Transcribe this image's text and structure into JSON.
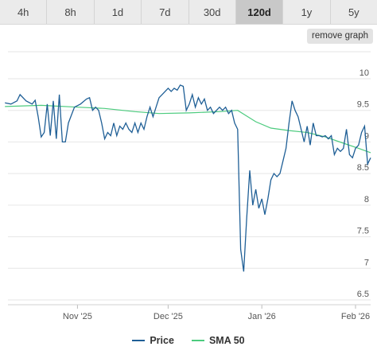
{
  "tabs": [
    {
      "label": "4h",
      "active": false
    },
    {
      "label": "8h",
      "active": false
    },
    {
      "label": "1d",
      "active": false
    },
    {
      "label": "7d",
      "active": false
    },
    {
      "label": "30d",
      "active": false
    },
    {
      "label": "120d",
      "active": true
    },
    {
      "label": "1y",
      "active": false
    },
    {
      "label": "5y",
      "active": false
    }
  ],
  "remove_graph_label": "remove graph",
  "colors": {
    "price": "#1f5f96",
    "sma": "#4ccb7e",
    "grid": "#e6e6e6",
    "axis_text": "#555555"
  },
  "chart_data": {
    "type": "line",
    "title": "",
    "xlabel": "",
    "ylabel": "",
    "ylim": [
      6.5,
      10
    ],
    "yticks": [
      6.5,
      7,
      7.5,
      8,
      8.5,
      9,
      9.5,
      10
    ],
    "ytick_labels": [
      "6.5",
      "7",
      "7.5",
      "8",
      "8.5",
      "9",
      "9.5",
      "10"
    ],
    "xlim": [
      "2025-10-09",
      "2026-02-06"
    ],
    "xticks": [
      {
        "date": "2025-11-01",
        "label": "Nov '25"
      },
      {
        "date": "2025-12-01",
        "label": "Dec '25"
      },
      {
        "date": "2026-01-01",
        "label": "Jan '26"
      },
      {
        "date": "2026-02-01",
        "label": "Feb '26"
      }
    ],
    "grid": "horizontal",
    "legend_position": "bottom",
    "series": [
      {
        "name": "Price",
        "points": [
          [
            "2025-10-08",
            9.62
          ],
          [
            "2025-10-10",
            9.6
          ],
          [
            "2025-10-12",
            9.65
          ],
          [
            "2025-10-13",
            9.75
          ],
          [
            "2025-10-15",
            9.65
          ],
          [
            "2025-10-17",
            9.6
          ],
          [
            "2025-10-18",
            9.66
          ],
          [
            "2025-10-19",
            9.4
          ],
          [
            "2025-10-20",
            9.08
          ],
          [
            "2025-10-21",
            9.15
          ],
          [
            "2025-10-22",
            9.6
          ],
          [
            "2025-10-23",
            9.1
          ],
          [
            "2025-10-24",
            9.65
          ],
          [
            "2025-10-25",
            9.05
          ],
          [
            "2025-10-26",
            9.75
          ],
          [
            "2025-10-27",
            9.0
          ],
          [
            "2025-10-28",
            9.0
          ],
          [
            "2025-10-29",
            9.3
          ],
          [
            "2025-10-31",
            9.55
          ],
          [
            "2025-11-02",
            9.6
          ],
          [
            "2025-11-04",
            9.68
          ],
          [
            "2025-11-05",
            9.7
          ],
          [
            "2025-11-06",
            9.5
          ],
          [
            "2025-11-07",
            9.55
          ],
          [
            "2025-11-08",
            9.5
          ],
          [
            "2025-11-09",
            9.3
          ],
          [
            "2025-11-10",
            9.05
          ],
          [
            "2025-11-11",
            9.15
          ],
          [
            "2025-11-12",
            9.1
          ],
          [
            "2025-11-13",
            9.3
          ],
          [
            "2025-11-14",
            9.1
          ],
          [
            "2025-11-15",
            9.25
          ],
          [
            "2025-11-16",
            9.2
          ],
          [
            "2025-11-17",
            9.3
          ],
          [
            "2025-11-18",
            9.2
          ],
          [
            "2025-11-19",
            9.15
          ],
          [
            "2025-11-20",
            9.3
          ],
          [
            "2025-11-21",
            9.15
          ],
          [
            "2025-11-22",
            9.3
          ],
          [
            "2025-11-23",
            9.2
          ],
          [
            "2025-11-24",
            9.4
          ],
          [
            "2025-11-25",
            9.55
          ],
          [
            "2025-11-26",
            9.4
          ],
          [
            "2025-11-27",
            9.55
          ],
          [
            "2025-11-28",
            9.7
          ],
          [
            "2025-11-29",
            9.75
          ],
          [
            "2025-11-30",
            9.8
          ],
          [
            "2025-12-01",
            9.85
          ],
          [
            "2025-12-02",
            9.8
          ],
          [
            "2025-12-03",
            9.85
          ],
          [
            "2025-12-04",
            9.82
          ],
          [
            "2025-12-05",
            9.9
          ],
          [
            "2025-12-06",
            9.88
          ],
          [
            "2025-12-07",
            9.5
          ],
          [
            "2025-12-08",
            9.6
          ],
          [
            "2025-12-09",
            9.75
          ],
          [
            "2025-12-10",
            9.55
          ],
          [
            "2025-12-11",
            9.7
          ],
          [
            "2025-12-12",
            9.6
          ],
          [
            "2025-12-13",
            9.68
          ],
          [
            "2025-12-14",
            9.5
          ],
          [
            "2025-12-15",
            9.55
          ],
          [
            "2025-12-16",
            9.45
          ],
          [
            "2025-12-17",
            9.5
          ],
          [
            "2025-12-18",
            9.55
          ],
          [
            "2025-12-19",
            9.5
          ],
          [
            "2025-12-20",
            9.55
          ],
          [
            "2025-12-21",
            9.45
          ],
          [
            "2025-12-22",
            9.5
          ],
          [
            "2025-12-23",
            9.3
          ],
          [
            "2025-12-24",
            9.2
          ],
          [
            "2025-12-25",
            7.3
          ],
          [
            "2025-12-26",
            6.95
          ],
          [
            "2025-12-27",
            7.8
          ],
          [
            "2025-12-28",
            8.55
          ],
          [
            "2025-12-29",
            8.0
          ],
          [
            "2025-12-30",
            8.25
          ],
          [
            "2025-12-31",
            7.95
          ],
          [
            "2026-01-01",
            8.1
          ],
          [
            "2026-01-02",
            7.85
          ],
          [
            "2026-01-03",
            8.1
          ],
          [
            "2026-01-04",
            8.4
          ],
          [
            "2026-01-05",
            8.5
          ],
          [
            "2026-01-06",
            8.45
          ],
          [
            "2026-01-07",
            8.5
          ],
          [
            "2026-01-08",
            8.7
          ],
          [
            "2026-01-09",
            8.9
          ],
          [
            "2026-01-10",
            9.3
          ],
          [
            "2026-01-11",
            9.65
          ],
          [
            "2026-01-12",
            9.5
          ],
          [
            "2026-01-13",
            9.4
          ],
          [
            "2026-01-14",
            9.2
          ],
          [
            "2026-01-15",
            9.0
          ],
          [
            "2026-01-16",
            9.25
          ],
          [
            "2026-01-17",
            8.95
          ],
          [
            "2026-01-18",
            9.3
          ],
          [
            "2026-01-19",
            9.1
          ],
          [
            "2026-01-20",
            9.1
          ],
          [
            "2026-01-21",
            9.08
          ],
          [
            "2026-01-22",
            9.1
          ],
          [
            "2026-01-23",
            9.05
          ],
          [
            "2026-01-24",
            9.1
          ],
          [
            "2026-01-25",
            8.8
          ],
          [
            "2026-01-26",
            8.9
          ],
          [
            "2026-01-27",
            8.85
          ],
          [
            "2026-01-28",
            8.9
          ],
          [
            "2026-01-29",
            9.2
          ],
          [
            "2026-01-30",
            8.8
          ],
          [
            "2026-01-31",
            8.75
          ],
          [
            "2026-02-01",
            8.9
          ],
          [
            "2026-02-02",
            8.95
          ],
          [
            "2026-02-03",
            9.15
          ],
          [
            "2026-02-04",
            9.25
          ],
          [
            "2026-02-05",
            8.65
          ],
          [
            "2026-02-06",
            8.75
          ]
        ]
      },
      {
        "name": "SMA 50",
        "points": [
          [
            "2025-10-08",
            9.56
          ],
          [
            "2025-10-20",
            9.58
          ],
          [
            "2025-11-01",
            9.55
          ],
          [
            "2025-11-10",
            9.53
          ],
          [
            "2025-11-20",
            9.48
          ],
          [
            "2025-11-28",
            9.45
          ],
          [
            "2025-12-08",
            9.46
          ],
          [
            "2025-12-18",
            9.48
          ],
          [
            "2025-12-24",
            9.5
          ],
          [
            "2025-12-30",
            9.32
          ],
          [
            "2026-01-04",
            9.22
          ],
          [
            "2026-01-10",
            9.18
          ],
          [
            "2026-01-16",
            9.15
          ],
          [
            "2026-01-22",
            9.08
          ],
          [
            "2026-01-28",
            8.98
          ],
          [
            "2026-02-02",
            8.9
          ],
          [
            "2026-02-06",
            8.83
          ]
        ]
      }
    ]
  }
}
